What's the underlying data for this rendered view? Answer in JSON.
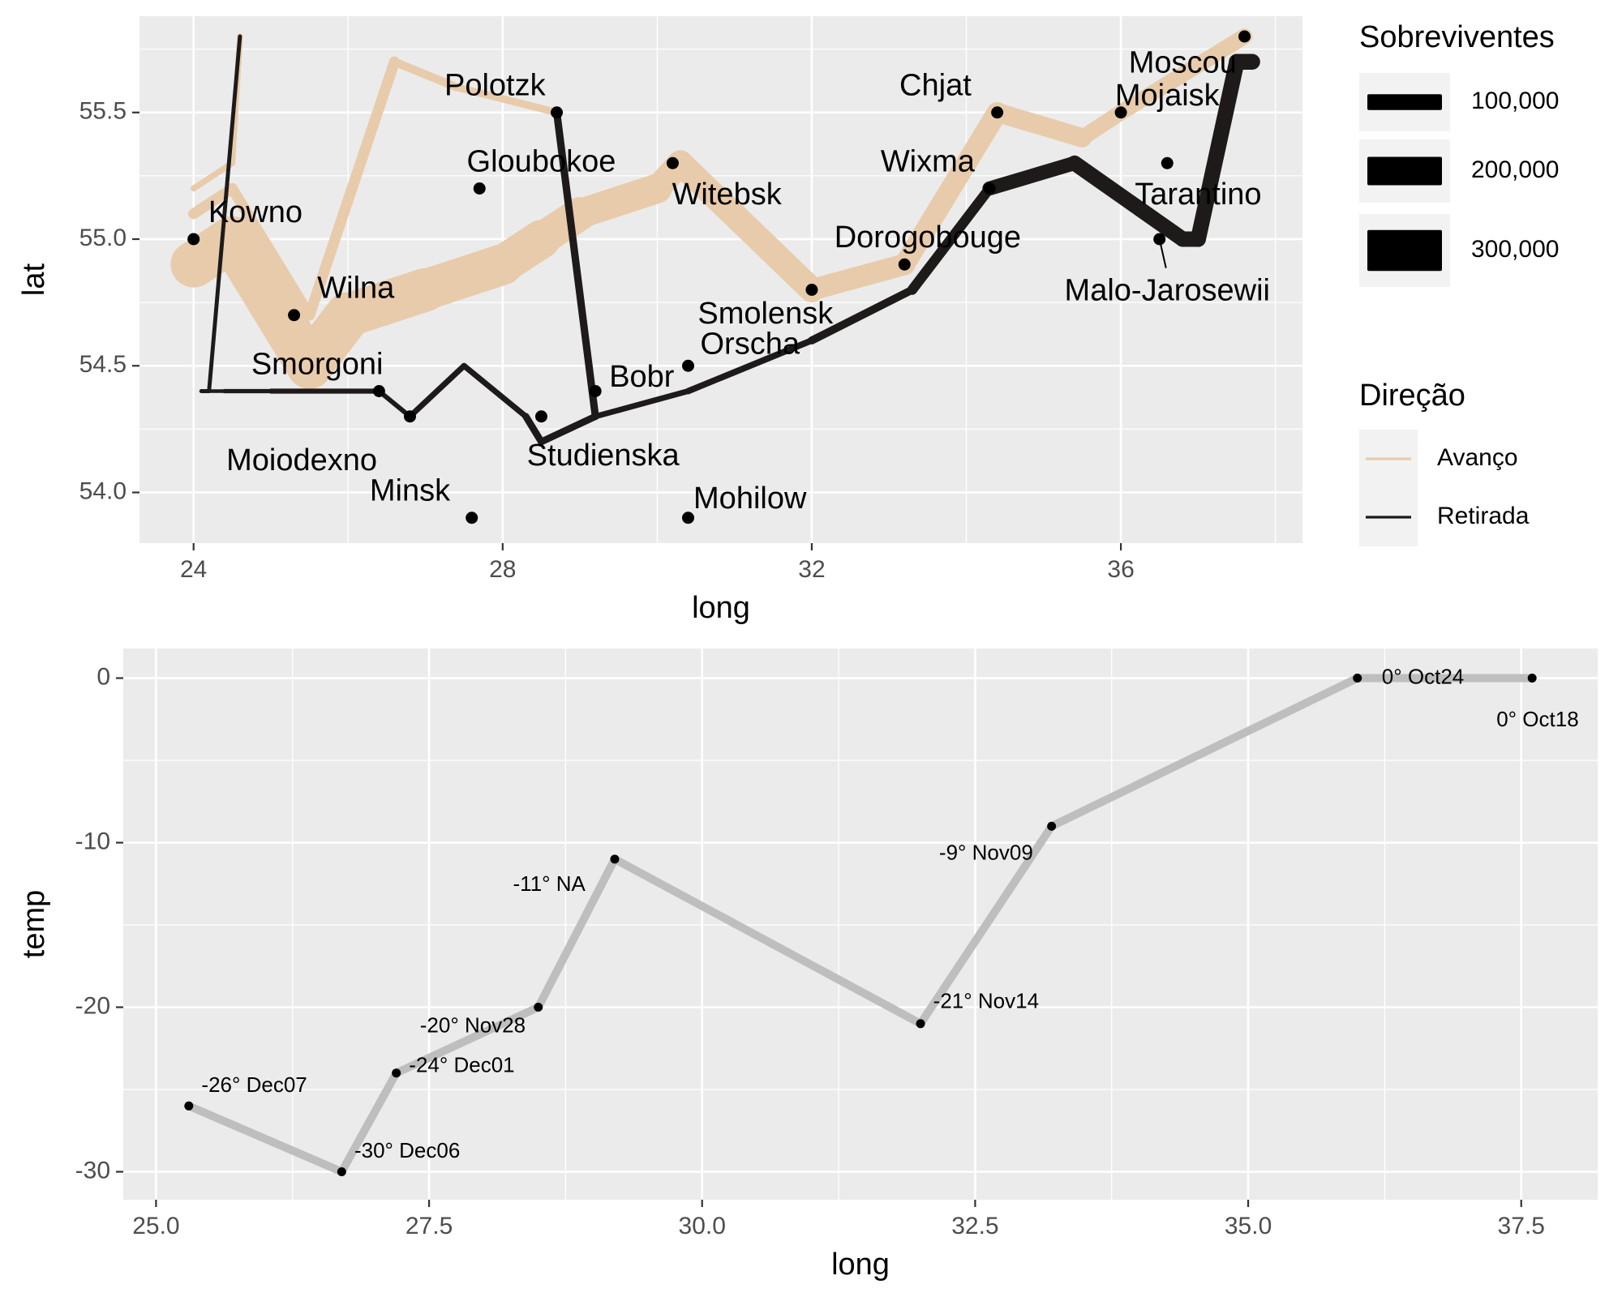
{
  "chart_data": [
    {
      "type": "path-map",
      "xlabel": "long",
      "ylabel": "lat",
      "xlim": [
        23.3,
        38.35
      ],
      "ylim": [
        53.8,
        55.88
      ],
      "xticks": [
        24,
        28,
        32,
        36
      ],
      "yticks": [
        54.0,
        54.5,
        55.0,
        55.5
      ],
      "tick_labels_x": [
        "24",
        "28",
        "32",
        "36"
      ],
      "tick_labels_y": [
        "54.0",
        "54.5",
        "55.0",
        "55.5"
      ],
      "grid": true,
      "legend_size": {
        "title": "Sobreviventes",
        "entries": [
          {
            "label": "100,000",
            "value": 100000
          },
          {
            "label": "200,000",
            "value": 200000
          },
          {
            "label": "300,000",
            "value": 300000
          }
        ]
      },
      "legend_direction": {
        "title": "Direção",
        "entries": [
          {
            "label": "Avanço",
            "color": "#E8CBAB"
          },
          {
            "label": "Retirada",
            "color": "#1E1A1A"
          }
        ]
      },
      "colors": {
        "advance": "#E8CBAB",
        "retreat": "#1E1A1A",
        "point": "#000000"
      },
      "troops": [
        {
          "direction": "A",
          "group": 1,
          "points": [
            {
              "long": 24.0,
              "lat": 54.9,
              "surv": 340000
            },
            {
              "long": 24.5,
              "lat": 55.0,
              "surv": 340000
            },
            {
              "long": 25.5,
              "lat": 54.5,
              "surv": 340000
            },
            {
              "long": 26.0,
              "lat": 54.7,
              "surv": 320000
            },
            {
              "long": 27.0,
              "lat": 54.8,
              "surv": 300000
            },
            {
              "long": 28.0,
              "lat": 54.9,
              "surv": 280000
            },
            {
              "long": 28.5,
              "lat": 55.0,
              "surv": 240000
            },
            {
              "long": 29.0,
              "lat": 55.1,
              "surv": 210000
            },
            {
              "long": 30.0,
              "lat": 55.2,
              "surv": 180000
            },
            {
              "long": 30.3,
              "lat": 55.3,
              "surv": 175000
            },
            {
              "long": 32.0,
              "lat": 54.8,
              "surv": 145000
            },
            {
              "long": 33.2,
              "lat": 54.9,
              "surv": 140000
            },
            {
              "long": 34.4,
              "lat": 55.5,
              "surv": 127100
            },
            {
              "long": 35.5,
              "lat": 55.4,
              "surv": 100000
            },
            {
              "long": 36.0,
              "lat": 55.5,
              "surv": 100000
            },
            {
              "long": 37.6,
              "lat": 55.8,
              "surv": 100000
            }
          ]
        },
        {
          "direction": "R",
          "group": 1,
          "points": [
            {
              "long": 37.7,
              "lat": 55.7,
              "surv": 100000
            },
            {
              "long": 37.5,
              "lat": 55.7,
              "surv": 98000
            },
            {
              "long": 37.0,
              "lat": 55.0,
              "surv": 97000
            },
            {
              "long": 36.8,
              "lat": 55.0,
              "surv": 96000
            },
            {
              "long": 35.4,
              "lat": 55.3,
              "surv": 87000
            },
            {
              "long": 34.3,
              "lat": 55.2,
              "surv": 55000
            },
            {
              "long": 33.3,
              "lat": 54.8,
              "surv": 37000
            },
            {
              "long": 32.0,
              "lat": 54.6,
              "surv": 24000
            },
            {
              "long": 30.4,
              "lat": 54.4,
              "surv": 20000
            },
            {
              "long": 29.2,
              "lat": 54.3,
              "surv": 20000
            },
            {
              "long": 28.5,
              "lat": 54.2,
              "surv": 20000
            },
            {
              "long": 28.3,
              "lat": 54.3,
              "surv": 20000
            },
            {
              "long": 27.5,
              "lat": 54.5,
              "surv": 20000
            },
            {
              "long": 26.8,
              "lat": 54.3,
              "surv": 12000
            },
            {
              "long": 26.4,
              "lat": 54.4,
              "surv": 14000
            },
            {
              "long": 25.0,
              "lat": 54.4,
              "surv": 8000
            },
            {
              "long": 24.4,
              "lat": 54.4,
              "surv": 4000
            },
            {
              "long": 24.2,
              "lat": 54.4,
              "surv": 4000
            },
            {
              "long": 24.1,
              "lat": 54.4,
              "surv": 4000
            }
          ]
        },
        {
          "direction": "A",
          "group": 2,
          "points": [
            {
              "long": 24.0,
              "lat": 55.1,
              "surv": 60000
            },
            {
              "long": 24.5,
              "lat": 55.2,
              "surv": 60000
            },
            {
              "long": 25.5,
              "lat": 54.7,
              "surv": 60000
            },
            {
              "long": 26.6,
              "lat": 55.7,
              "surv": 40000
            },
            {
              "long": 27.4,
              "lat": 55.6,
              "surv": 33000
            },
            {
              "long": 28.7,
              "lat": 55.5,
              "surv": 33000
            }
          ]
        },
        {
          "direction": "R",
          "group": 2,
          "points": [
            {
              "long": 28.7,
              "lat": 55.5,
              "surv": 33000
            },
            {
              "long": 29.2,
              "lat": 54.3,
              "surv": 30000
            },
            {
              "long": 28.5,
              "lat": 54.2,
              "surv": 30000
            },
            {
              "long": 28.3,
              "lat": 54.3,
              "surv": 28000
            }
          ]
        },
        {
          "direction": "A",
          "group": 3,
          "points": [
            {
              "long": 24.0,
              "lat": 55.2,
              "surv": 22000
            },
            {
              "long": 24.5,
              "lat": 55.3,
              "surv": 22000
            },
            {
              "long": 24.6,
              "lat": 55.8,
              "surv": 6000
            }
          ]
        },
        {
          "direction": "R",
          "group": 3,
          "points": [
            {
              "long": 24.6,
              "lat": 55.8,
              "surv": 6000
            },
            {
              "long": 24.2,
              "lat": 54.4,
              "surv": 6000
            },
            {
              "long": 24.1,
              "lat": 54.4,
              "surv": 6000
            }
          ]
        }
      ],
      "cities": [
        {
          "name": "Kowno",
          "long": 24.0,
          "lat": 55.0,
          "label_long": 24.8,
          "label_lat": 55.1
        },
        {
          "name": "Wilna",
          "long": 25.3,
          "lat": 54.7,
          "label_long": 26.1,
          "label_lat": 54.8
        },
        {
          "name": "Smorgoni",
          "long": 26.4,
          "lat": 54.4,
          "label_long": 25.6,
          "label_lat": 54.5
        },
        {
          "name": "Moiodexno",
          "long": 26.8,
          "lat": 54.3,
          "label_long": 25.4,
          "label_lat": 54.12
        },
        {
          "name": "Gloubokoe",
          "long": 27.7,
          "lat": 55.2,
          "label_long": 28.5,
          "label_lat": 55.3
        },
        {
          "name": "Minsk",
          "long": 27.6,
          "lat": 53.9,
          "label_long": 26.8,
          "label_lat": 54.0
        },
        {
          "name": "Studienska",
          "long": 28.5,
          "lat": 54.3,
          "label_long": 29.3,
          "label_lat": 54.14
        },
        {
          "name": "Polotzk",
          "long": 28.7,
          "lat": 55.5,
          "label_long": 27.9,
          "label_lat": 55.6
        },
        {
          "name": "Bobr",
          "long": 29.2,
          "lat": 54.4,
          "label_long": 29.8,
          "label_lat": 54.45
        },
        {
          "name": "Witebsk",
          "long": 30.2,
          "lat": 55.3,
          "label_long": 30.9,
          "label_lat": 55.17
        },
        {
          "name": "Orscha",
          "long": 30.4,
          "lat": 54.5,
          "label_long": 31.2,
          "label_lat": 54.58
        },
        {
          "name": "Mohilow",
          "long": 30.4,
          "lat": 53.9,
          "label_long": 31.2,
          "label_lat": 53.97
        },
        {
          "name": "Smolensk",
          "long": 32.0,
          "lat": 54.8,
          "label_long": 31.4,
          "label_lat": 54.7
        },
        {
          "name": "Dorogobouge",
          "long": 33.2,
          "lat": 54.9,
          "label_long": 33.5,
          "label_lat": 55.0
        },
        {
          "name": "Wixma",
          "long": 34.3,
          "lat": 55.2,
          "label_long": 33.5,
          "label_lat": 55.3
        },
        {
          "name": "Chjat",
          "long": 34.4,
          "lat": 55.5,
          "label_long": 33.6,
          "label_lat": 55.6
        },
        {
          "name": "Mojaisk",
          "long": 36.0,
          "lat": 55.5,
          "label_long": 36.6,
          "label_lat": 55.56
        },
        {
          "name": "Moscou",
          "long": 37.6,
          "lat": 55.8,
          "label_long": 36.8,
          "label_lat": 55.69
        },
        {
          "name": "Tarantino",
          "long": 36.6,
          "lat": 55.3,
          "label_long": 37.0,
          "label_lat": 55.17
        },
        {
          "name": "Malo-Jarosewii",
          "long": 36.5,
          "lat": 55.0,
          "label_long": 36.6,
          "label_lat": 54.79
        }
      ]
    },
    {
      "type": "line",
      "xlabel": "long",
      "ylabel": "temp",
      "xlim": [
        24.7,
        38.2
      ],
      "ylim": [
        -31.7,
        1.8
      ],
      "xticks": [
        25.0,
        27.5,
        30.0,
        32.5,
        35.0,
        37.5
      ],
      "yticks": [
        0,
        -10,
        -20,
        -30
      ],
      "tick_labels_x": [
        "25.0",
        "27.5",
        "30.0",
        "32.5",
        "35.0",
        "37.5"
      ],
      "tick_labels_y": [
        "0",
        "-10",
        "-20",
        "-30"
      ],
      "grid": true,
      "colors": {
        "line": "#BEBEBE",
        "point": "#000000"
      },
      "points": [
        {
          "long": 37.6,
          "temp": 0,
          "label": "0° Oct18",
          "label_long": 37.65,
          "label_temp": -2.6
        },
        {
          "long": 36.0,
          "temp": 0,
          "label": "0° Oct24",
          "label_long": 36.6,
          "label_temp": 0
        },
        {
          "long": 33.2,
          "temp": -9,
          "label": "-9° Nov09",
          "label_long": 32.6,
          "label_temp": -10.7
        },
        {
          "long": 32.0,
          "temp": -21,
          "label": "-21° Nov14",
          "label_long": 32.6,
          "label_temp": -19.7
        },
        {
          "long": 29.2,
          "temp": -11,
          "label": "-11° NA",
          "label_long": 28.6,
          "label_temp": -12.6
        },
        {
          "long": 28.5,
          "temp": -20,
          "label": "-20° Nov28",
          "label_long": 27.9,
          "label_temp": -21.2
        },
        {
          "long": 27.2,
          "temp": -24,
          "label": "-24° Dec01",
          "label_long": 27.8,
          "label_temp": -23.6
        },
        {
          "long": 26.7,
          "temp": -30,
          "label": "-30° Dec06",
          "label_long": 27.3,
          "label_temp": -28.8
        },
        {
          "long": 25.3,
          "temp": -26,
          "label": "-26° Dec07",
          "label_long": 25.9,
          "label_temp": -24.8
        }
      ]
    }
  ]
}
